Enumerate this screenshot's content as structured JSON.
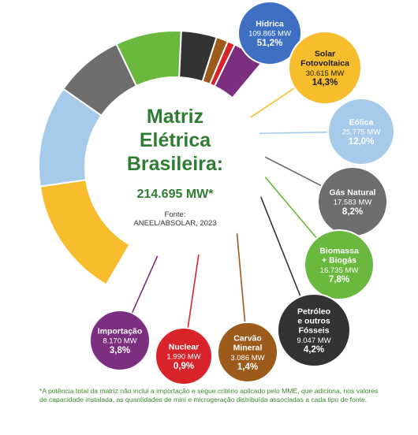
{
  "chart_data": {
    "type": "pie",
    "title_lines": [
      "Matriz",
      "Elétrica",
      "Brasileira:"
    ],
    "total_label": "214.695 MW*",
    "source_lines": [
      "Fonte:",
      "ANEEL/ABSOLAR, 2023"
    ],
    "slices": [
      {
        "name_lines": [
          "Hídrica"
        ],
        "mw": "109.865 MW",
        "percent": 51.2,
        "percent_label": "51,2%",
        "color": "#3e6fc2"
      },
      {
        "name_lines": [
          "Solar",
          "Fotovoltaica"
        ],
        "mw": "30.615 MW",
        "percent": 14.3,
        "percent_label": "14,3%",
        "color": "#f8bd2c"
      },
      {
        "name_lines": [
          "Eólica"
        ],
        "mw": "25.775 MW",
        "percent": 12.0,
        "percent_label": "12,0%",
        "color": "#a6caea"
      },
      {
        "name_lines": [
          "Gás Natural"
        ],
        "mw": "17.583 MW",
        "percent": 8.2,
        "percent_label": "8,2%",
        "color": "#6e6e6e"
      },
      {
        "name_lines": [
          "Biomassa",
          "+ Biogás"
        ],
        "mw": "16.735 MW",
        "percent": 7.8,
        "percent_label": "7,8%",
        "color": "#6ab83d"
      },
      {
        "name_lines": [
          "Petróleo",
          "e outros",
          "Fósseis"
        ],
        "mw": "9.047 MW",
        "percent": 4.2,
        "percent_label": "4,2%",
        "color": "#333333"
      },
      {
        "name_lines": [
          "Carvão",
          "Mineral"
        ],
        "mw": "3.086 MW",
        "percent": 1.4,
        "percent_label": "1,4%",
        "color": "#9c5a1b"
      },
      {
        "name_lines": [
          "Nuclear"
        ],
        "mw": "1.990 MW",
        "percent": 0.9,
        "percent_label": "0,9%",
        "color": "#d9232a"
      },
      {
        "name_lines": [
          "Importação"
        ],
        "mw": "8.170 MW",
        "percent": 3.8,
        "percent_label": "3,8%",
        "color": "#7c2f7f"
      }
    ]
  },
  "footnote": "*A potência total da matriz não inclui a importação e segue critério aplicado pelo MME, que adiciona, nos valores de capacidade instalada, as quantidades de mini e microgeração distribuída associadas a cada tipo de fonte."
}
